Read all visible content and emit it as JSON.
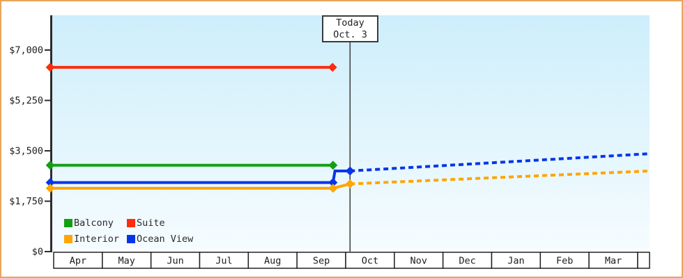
{
  "page": {
    "border_color": "#e9a55c",
    "background": "#ffffff"
  },
  "chart_data": {
    "type": "line",
    "title": "",
    "plot": {
      "background_top": "#cdeefb",
      "background_bottom": "#f6fcff"
    },
    "y_axis": {
      "min": 0,
      "max": 7000,
      "ticks": [
        {
          "value": 0,
          "label": "$0"
        },
        {
          "value": 1750,
          "label": "$1,750"
        },
        {
          "value": 3500,
          "label": "$3,500"
        },
        {
          "value": 5250,
          "label": "$5,250"
        },
        {
          "value": 7000,
          "label": "$7,000"
        }
      ]
    },
    "x_axis": {
      "months": [
        "Apr",
        "May",
        "Jun",
        "Jul",
        "Aug",
        "Sep",
        "Oct",
        "Nov",
        "Dec",
        "Jan",
        "Feb",
        "Mar"
      ]
    },
    "today_marker": {
      "label_line1": "Today",
      "label_line2": "Oct. 3",
      "month_position": 6.09
    },
    "series": [
      {
        "name": "Suite",
        "color": "#ff2b0d",
        "points": [
          {
            "m": -0.07,
            "v": 6400
          },
          {
            "m": 5.73,
            "v": 6400
          }
        ],
        "projection": [],
        "markers": [
          {
            "m": -0.07,
            "v": 6400
          },
          {
            "m": 5.73,
            "v": 6400
          }
        ]
      },
      {
        "name": "Balcony",
        "color": "#12a012",
        "points": [
          {
            "m": -0.07,
            "v": 3000
          },
          {
            "m": 5.74,
            "v": 3000
          }
        ],
        "projection": [],
        "markers": [
          {
            "m": -0.07,
            "v": 3000
          },
          {
            "m": 5.74,
            "v": 3000
          }
        ]
      },
      {
        "name": "Ocean View",
        "color": "#0535e8",
        "points": [
          {
            "m": -0.07,
            "v": 2400
          },
          {
            "m": 5.74,
            "v": 2400
          },
          {
            "m": 5.78,
            "v": 2800
          },
          {
            "m": 6.09,
            "v": 2800
          }
        ],
        "projection": [
          {
            "m": 6.09,
            "v": 2800
          },
          {
            "m": 12.24,
            "v": 3400
          }
        ],
        "markers": [
          {
            "m": -0.07,
            "v": 2400
          },
          {
            "m": 5.74,
            "v": 2400
          },
          {
            "m": 6.09,
            "v": 2800
          }
        ]
      },
      {
        "name": "Interior",
        "color": "#ffa504",
        "points": [
          {
            "m": -0.07,
            "v": 2200
          },
          {
            "m": 5.74,
            "v": 2200
          },
          {
            "m": 6.09,
            "v": 2350
          }
        ],
        "projection": [
          {
            "m": 6.09,
            "v": 2350
          },
          {
            "m": 12.24,
            "v": 2800
          }
        ],
        "markers": [
          {
            "m": -0.07,
            "v": 2200
          },
          {
            "m": 5.74,
            "v": 2200
          },
          {
            "m": 6.09,
            "v": 2350
          }
        ]
      }
    ],
    "legend": [
      {
        "label": "Balcony",
        "color": "#12a012"
      },
      {
        "label": "Suite",
        "color": "#ff2b0d"
      },
      {
        "label": "Interior",
        "color": "#ffa504"
      },
      {
        "label": "Ocean View",
        "color": "#0535e8"
      }
    ]
  }
}
